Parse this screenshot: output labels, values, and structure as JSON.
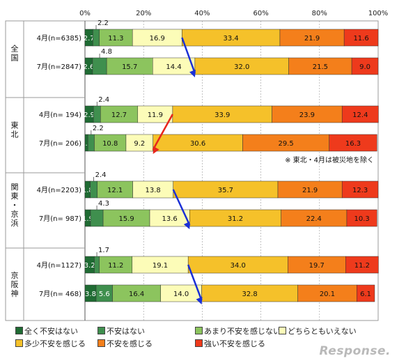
{
  "chart_data": {
    "type": "bar",
    "orientation": "horizontal",
    "stacked": "percent",
    "x_ticks": [
      "0%",
      "20%",
      "40%",
      "60%",
      "80%",
      "100%"
    ],
    "xlim": [
      0,
      100
    ],
    "legend_position": "bottom",
    "categories": [
      "全く不安はない",
      "不安はない",
      "あまり不安を感じない",
      "どちらともいえない",
      "多少不安を感じる",
      "不安を感じる",
      "強い不安を感じる"
    ],
    "colors": [
      "#1f6b33",
      "#3f8f4e",
      "#8cc45e",
      "#fcfcb8",
      "#f5c12a",
      "#f47f1b",
      "#ee3a1c"
    ],
    "groups": [
      {
        "name": "全国",
        "rows": [
          {
            "label": "4月(n=6385)",
            "values": [
              2.7,
              2.2,
              11.3,
              16.9,
              33.4,
              21.9,
              11.6
            ],
            "labels": [
              "2.7",
              "",
              "11.3",
              "16.9",
              "33.4",
              "21.9",
              "11.6"
            ],
            "callout": "2.2"
          },
          {
            "label": "7月(n=2847)",
            "values": [
              2.6,
              4.8,
              15.7,
              14.4,
              32.0,
              21.5,
              9.0
            ],
            "labels": [
              "2.6",
              "",
              "15.7",
              "14.4",
              "32.0",
              "21.5",
              "9.0"
            ],
            "callout": "4.8"
          }
        ]
      },
      {
        "name": "東北",
        "rows": [
          {
            "label": "4月(n= 194)",
            "values": [
              2.9,
              2.4,
              12.7,
              11.9,
              33.9,
              23.9,
              12.4
            ],
            "labels": [
              "2.9",
              "",
              "12.7",
              "11.9",
              "33.9",
              "23.9",
              "12.4"
            ],
            "callout": "2.4"
          },
          {
            "label": "7月(n= 206)",
            "values": [
              1.0,
              2.2,
              10.8,
              9.2,
              30.6,
              29.5,
              16.3
            ],
            "labels": [
              "1.0",
              "",
              "10.8",
              "9.2",
              "30.6",
              "29.5",
              "16.3"
            ],
            "callout": "2.2"
          }
        ]
      },
      {
        "name": "関東・京浜",
        "rows": [
          {
            "label": "4月(n=2203)",
            "values": [
              1.8,
              2.4,
              12.1,
              13.8,
              35.7,
              21.9,
              12.3
            ],
            "labels": [
              "1.8",
              "",
              "12.1",
              "13.8",
              "35.7",
              "21.9",
              "12.3"
            ],
            "callout": "2.4"
          },
          {
            "label": "7月(n= 987)",
            "values": [
              1.9,
              4.3,
              15.9,
              13.6,
              31.2,
              22.4,
              10.3
            ],
            "labels": [
              "1.9",
              "",
              "15.9",
              "13.6",
              "31.2",
              "22.4",
              "10.3"
            ],
            "callout": "4.3"
          }
        ]
      },
      {
        "name": "京阪神",
        "rows": [
          {
            "label": "4月(n=1127)",
            "values": [
              3.2,
              1.7,
              11.2,
              19.1,
              34.0,
              19.7,
              11.2
            ],
            "labels": [
              "3.2",
              "",
              "11.2",
              "19.1",
              "34.0",
              "19.7",
              "11.2"
            ],
            "callout": "1.7"
          },
          {
            "label": "7月(n= 468)",
            "values": [
              3.8,
              5.6,
              16.4,
              14.0,
              32.8,
              20.1,
              6.1
            ],
            "labels": [
              "3.8",
              "5.6",
              "16.4",
              "14.0",
              "32.8",
              "20.1",
              "6.1"
            ],
            "callout": ""
          }
        ]
      }
    ],
    "annotations": [
      "※ 東北・4月は被災地を除く"
    ],
    "arrows": [
      {
        "group": "全国",
        "color": "blue"
      },
      {
        "group": "東北",
        "color": "red"
      },
      {
        "group": "関東・京浜",
        "color": "blue"
      },
      {
        "group": "京阪神",
        "color": "blue"
      }
    ]
  },
  "watermark": "Response."
}
